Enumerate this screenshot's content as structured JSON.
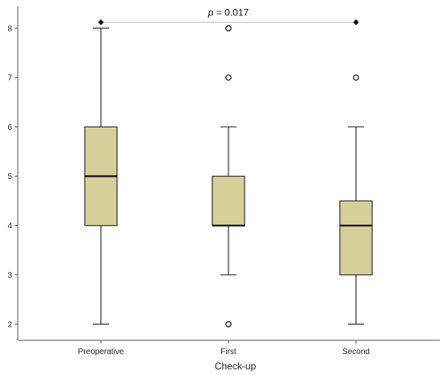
{
  "chart_data": {
    "type": "box",
    "title": "",
    "xlabel": "Check-up",
    "ylabel": "",
    "ylim": [
      1.8,
      8.3
    ],
    "yticks": [
      2,
      3,
      4,
      5,
      6,
      7,
      8
    ],
    "grid": false,
    "box_color": "#d6cf9a",
    "categories": [
      "Preoperative",
      "First",
      "Second"
    ],
    "boxes": [
      {
        "category": "Preoperative",
        "whisker_low": 2,
        "q1": 4,
        "median": 5,
        "q3": 6,
        "whisker_high": 8,
        "outliers": []
      },
      {
        "category": "First",
        "whisker_low": 3,
        "q1": 4,
        "median": 4,
        "q3": 5,
        "whisker_high": 6,
        "outliers": [
          2,
          7,
          8
        ]
      },
      {
        "category": "Second",
        "whisker_low": 2,
        "q1": 3,
        "median": 4,
        "q3": 4.5,
        "whisker_high": 6,
        "outliers": [
          7
        ]
      }
    ],
    "significance": {
      "label_prefix": "p",
      "label_value": " = 0.017",
      "from": "Preoperative",
      "to": "Second",
      "y": 8.12
    }
  }
}
